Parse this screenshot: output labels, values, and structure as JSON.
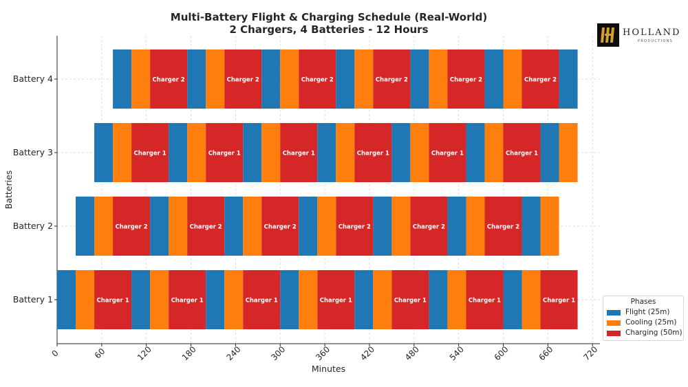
{
  "chart_data": {
    "type": "gantt",
    "title": [
      "Multi-Battery Flight & Charging Schedule (Real-World)",
      "2 Chargers, 4 Batteries - 12 Hours"
    ],
    "xlabel": "Minutes",
    "ylabel": "Batteries",
    "xlim": [
      0,
      730
    ],
    "xticks": [
      0,
      60,
      120,
      180,
      240,
      300,
      360,
      420,
      480,
      540,
      600,
      660,
      720
    ],
    "categories": [
      "Battery 1",
      "Battery 2",
      "Battery 3",
      "Battery 4"
    ],
    "grid": true,
    "legend": {
      "title": "Phases",
      "position": "lower-right",
      "entries": [
        {
          "label": "Flight (25m)",
          "color": "#1f77b4"
        },
        {
          "label": "Cooling (25m)",
          "color": "#ff7f0e"
        },
        {
          "label": "Charging (50m)",
          "color": "#d62728"
        }
      ]
    },
    "phase_colors": {
      "flight": "#1f77b4",
      "cooling": "#ff7f0e",
      "charging": "#d62728"
    },
    "batteries": [
      {
        "name": "Battery 1",
        "start": 0,
        "charger_label": "Charger 1",
        "cycles": 7,
        "tail": "none"
      },
      {
        "name": "Battery 2",
        "start": 25,
        "charger_label": "Charger 2",
        "cycles": 6,
        "tail": "flight-cooling"
      },
      {
        "name": "Battery 3",
        "start": 50,
        "charger_label": "Charger 1",
        "cycles": 6,
        "tail": "flight-cooling"
      },
      {
        "name": "Battery 4",
        "start": 75,
        "charger_label": "Charger 2",
        "cycles": 6,
        "tail": "flight"
      }
    ]
  },
  "logo": {
    "word": "HOLLAND",
    "sub": "PRODUCTIONS"
  }
}
